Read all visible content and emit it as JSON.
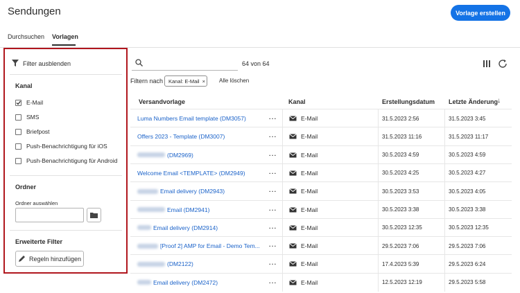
{
  "header": {
    "title": "Sendungen",
    "button": "Vorlage erstellen"
  },
  "tabs": [
    "Durchsuchen",
    "Vorlagen"
  ],
  "sidebar": {
    "hide_filters": "Filter ausblenden",
    "channel": {
      "title": "Kanal",
      "options": [
        {
          "label": "E-Mail",
          "checked": true
        },
        {
          "label": "SMS",
          "checked": false
        },
        {
          "label": "Briefpost",
          "checked": false
        },
        {
          "label": "Push-Benachrichtigung für iOS",
          "checked": false
        },
        {
          "label": "Push-Benachrichtigung für Android",
          "checked": false
        }
      ]
    },
    "folder": {
      "title": "Ordner",
      "label": "Ordner auswählen"
    },
    "advanced": {
      "title": "Erweiterte Filter",
      "button": "Regeln hinzufügen"
    }
  },
  "toolbar": {
    "count": "64 von 64",
    "filter_label": "Filtern nach",
    "chip": "Kanal: E-Mail",
    "clear": "Alle löschen"
  },
  "table": {
    "columns": [
      "Versandvorlage",
      "Kanal",
      "Erstellungsdatum",
      "Letzte Änderung"
    ],
    "rows": [
      {
        "name": "Luma Numbers Email template (DM3057)",
        "redacted": false,
        "channel": "E-Mail",
        "created": "31.5.2023 2:56",
        "modified": "31.5.2023 3:45"
      },
      {
        "name": "Offers 2023 - Template (DM3007)",
        "redacted": false,
        "channel": "E-Mail",
        "created": "31.5.2023 11:16",
        "modified": "31.5.2023 11:17"
      },
      {
        "name": "(DM2969)",
        "redacted": true,
        "channel": "E-Mail",
        "created": "30.5.2023 4:59",
        "modified": "30.5.2023 4:59"
      },
      {
        "name": "Welcome Email <TEMPLATE> (DM2949)",
        "redacted": false,
        "channel": "E-Mail",
        "created": "30.5.2023 4:25",
        "modified": "30.5.2023 4:27"
      },
      {
        "name": "Email delivery (DM2943)",
        "redacted": true,
        "channel": "E-Mail",
        "created": "30.5.2023 3:53",
        "modified": "30.5.2023 4:05"
      },
      {
        "name": "Email (DM2941)",
        "redacted": true,
        "channel": "E-Mail",
        "created": "30.5.2023 3:38",
        "modified": "30.5.2023 3:38"
      },
      {
        "name": "Email delivery (DM2914)",
        "redacted": true,
        "channel": "E-Mail",
        "created": "30.5.2023 12:35",
        "modified": "30.5.2023 12:35"
      },
      {
        "name": "[Proof 2] AMP for Email - Demo Tem...",
        "redacted": true,
        "channel": "E-Mail",
        "created": "29.5.2023 7:06",
        "modified": "29.5.2023 7:06"
      },
      {
        "name": "(DM2122)",
        "redacted": true,
        "channel": "E-Mail",
        "created": "17.4.2023 5:39",
        "modified": "29.5.2023 6:24"
      },
      {
        "name": "Email delivery (DM2472)",
        "redacted": true,
        "channel": "E-Mail",
        "created": "12.5.2023 12:19",
        "modified": "29.5.2023 5:58"
      }
    ]
  }
}
